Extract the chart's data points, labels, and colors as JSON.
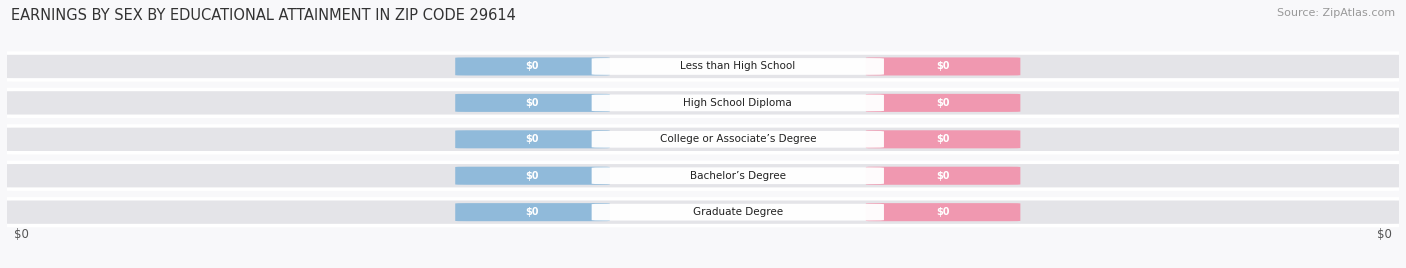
{
  "title": "EARNINGS BY SEX BY EDUCATIONAL ATTAINMENT IN ZIP CODE 29614",
  "source": "Source: ZipAtlas.com",
  "categories": [
    "Less than High School",
    "High School Diploma",
    "College or Associate’s Degree",
    "Bachelor’s Degree",
    "Graduate Degree"
  ],
  "male_values": [
    0,
    0,
    0,
    0,
    0
  ],
  "female_values": [
    0,
    0,
    0,
    0,
    0
  ],
  "male_color": "#90bada",
  "female_color": "#f098b0",
  "male_legend_color": "#7ab0d8",
  "female_legend_color": "#f098b0",
  "row_bg_color": "#e4e4e8",
  "title_fontsize": 10.5,
  "source_fontsize": 8,
  "xlabel_left": "$0",
  "xlabel_right": "$0",
  "value_label": "$0",
  "background_color": "#f8f8fa",
  "row_sep_color": "#ffffff"
}
